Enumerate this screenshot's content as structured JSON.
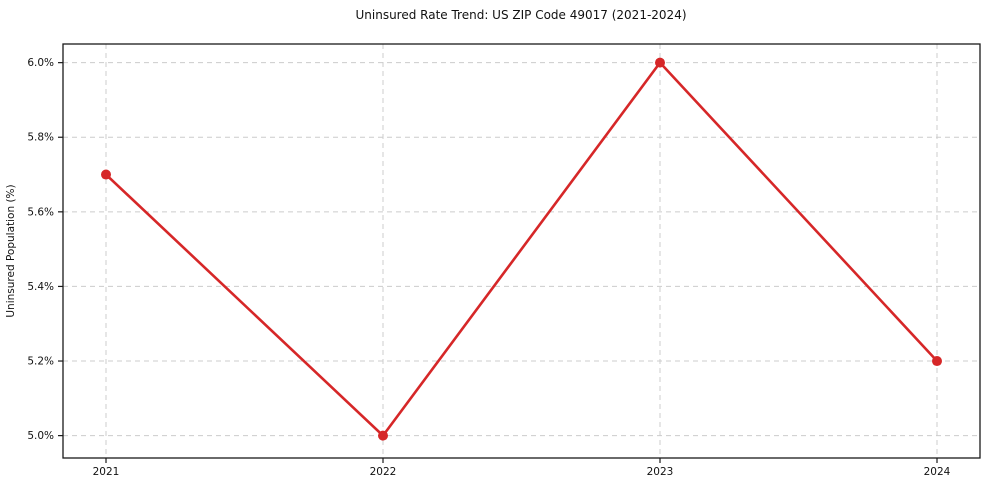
{
  "chart_data": {
    "type": "line",
    "title": "Uninsured Rate Trend: US ZIP Code 49017 (2021-2024)",
    "xlabel": "",
    "ylabel": "Uninsured Population (%)",
    "categories": [
      "2021",
      "2022",
      "2023",
      "2024"
    ],
    "values": [
      5.7,
      5.0,
      6.0,
      5.2
    ],
    "y_ticks": [
      5.0,
      5.2,
      5.4,
      5.6,
      5.8,
      6.0
    ],
    "y_tick_labels": [
      "5.0%",
      "5.2%",
      "5.4%",
      "5.6%",
      "5.8%",
      "6.0%"
    ],
    "x_tick_labels": [
      "2021",
      "2022",
      "2023",
      "2024"
    ],
    "ylim": [
      4.94,
      6.05
    ],
    "grid": true,
    "legend": "none",
    "line_color": "#d62728",
    "marker": "circle",
    "grid_color": "#cccccc",
    "frame_color": "#1a1a1a",
    "background_color": "#ffffff"
  }
}
